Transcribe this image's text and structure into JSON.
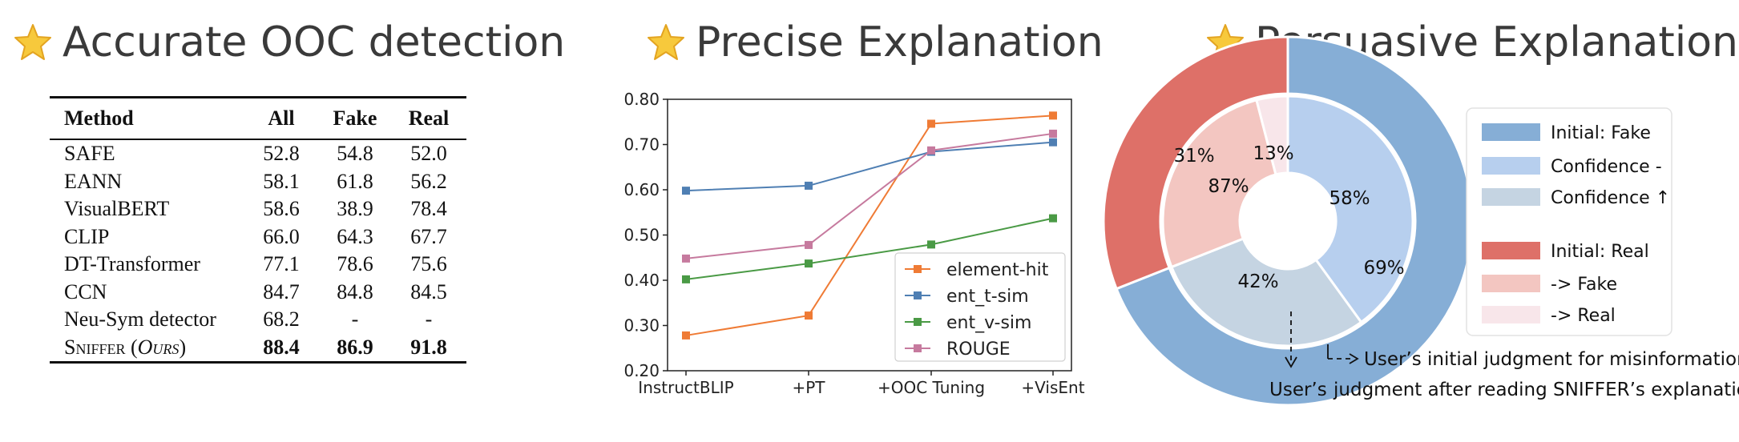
{
  "titles": {
    "t1": "Accurate OOC detection",
    "t2": "Precise Explanation",
    "t3": "Persuasive Explanation",
    "icon": "star-icon"
  },
  "table": {
    "headers": [
      "Method",
      "All",
      "Fake",
      "Real"
    ],
    "rows": [
      {
        "method": "SAFE",
        "all": "52.8",
        "fake": "54.8",
        "real": "52.0"
      },
      {
        "method": "EANN",
        "all": "58.1",
        "fake": "61.8",
        "real": "56.2"
      },
      {
        "method": "VisualBERT",
        "all": "58.6",
        "fake": "38.9",
        "real": "78.4"
      },
      {
        "method": "CLIP",
        "all": "66.0",
        "fake": "64.3",
        "real": "67.7"
      },
      {
        "method": "DT-Transformer",
        "all": "77.1",
        "fake": "78.6",
        "real": "75.6"
      },
      {
        "method": "CCN",
        "all": "84.7",
        "fake": "84.8",
        "real": "84.5"
      },
      {
        "method": "Neu-Sym detector",
        "all": "68.2",
        "fake": "-",
        "real": "-"
      }
    ],
    "ours": {
      "method": "Sniffer",
      "suffix": "Ours",
      "all": "88.4",
      "fake": "86.9",
      "real": "91.8"
    }
  },
  "chart_data": [
    {
      "type": "line",
      "x": [
        "InstructBLIP",
        "+PT",
        "+OOC Tuning",
        "+VisEnt"
      ],
      "ylim": [
        0.2,
        0.8
      ],
      "yticks": [
        "0.20",
        "0.30",
        "0.40",
        "0.50",
        "0.60",
        "0.70",
        "0.80"
      ],
      "legend_position": "lower-right",
      "series": [
        {
          "name": "element-hit",
          "color": "#ef7b35",
          "values": [
            0.278,
            0.322,
            0.746,
            0.764
          ]
        },
        {
          "name": "ent_t-sim",
          "color": "#4f7fb3",
          "values": [
            0.598,
            0.609,
            0.684,
            0.705
          ]
        },
        {
          "name": "ent_v-sim",
          "color": "#4a9a45",
          "values": [
            0.402,
            0.437,
            0.479,
            0.537
          ]
        },
        {
          "name": "ROUGE",
          "color": "#c67a9e",
          "values": [
            0.448,
            0.478,
            0.687,
            0.724
          ]
        }
      ]
    },
    {
      "type": "pie",
      "outer": [
        {
          "label": "Initial: Fake",
          "value": 69,
          "text": "69%",
          "color": "#86aed6"
        },
        {
          "label": "Initial: Real",
          "value": 31,
          "text": "31%",
          "color": "#de7068"
        }
      ],
      "inner": [
        {
          "label": "Confidence -",
          "value": 58,
          "text": "58%",
          "color": "#b7cfee"
        },
        {
          "label": "Confidence ↑",
          "value": 42,
          "text": "42%",
          "color": "#c5d4e2"
        },
        {
          "label": "-> Fake",
          "value": 87,
          "text": "87%",
          "color": "#f3c6c1"
        },
        {
          "label": "-> Real",
          "value": 13,
          "text": "13%",
          "color": "#f8e6ea"
        }
      ],
      "legend": [
        {
          "label": "Initial: Fake",
          "color": "#86aed6"
        },
        {
          "label": "Confidence -",
          "color": "#b7cfee"
        },
        {
          "label": "Confidence ↑",
          "color": "#c5d4e2"
        },
        {
          "label": "Initial: Real",
          "color": "#de7068"
        },
        {
          "label": "-> Fake",
          "color": "#f3c6c1"
        },
        {
          "label": "-> Real",
          "color": "#f8e6ea"
        }
      ],
      "annotations": {
        "arrow_note": "User’s initial judgment for misinformation",
        "after_note_prefix": "User’s",
        "after_note": "judgment after reading SNIFFER’s explanation"
      }
    }
  ]
}
